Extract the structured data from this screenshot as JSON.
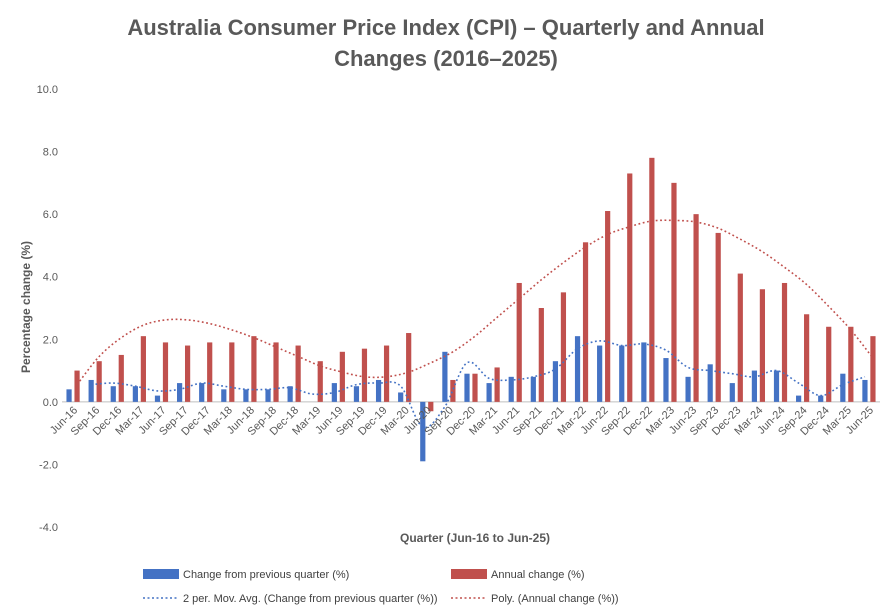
{
  "chart_data": {
    "type": "bar",
    "title_lines": [
      "Australia Consumer Price Index (CPI) – Quarterly and Annual",
      "Changes (2016–2025)"
    ],
    "xlabel": "Quarter (Jun-16 to Jun-25)",
    "ylabel": "Percentage change (%)",
    "ylim": [
      -4,
      10
    ],
    "yticks": [
      -4,
      -2,
      0,
      2,
      4,
      6,
      8,
      10
    ],
    "ytick_labels": [
      "-4.0",
      "-2.0",
      "0.0",
      "2.0",
      "4.0",
      "6.0",
      "8.0",
      "10.0"
    ],
    "categories": [
      "Jun-16",
      "Sep-16",
      "Dec-16",
      "Mar-17",
      "Jun-17",
      "Sep-17",
      "Dec-17",
      "Mar-18",
      "Jun-18",
      "Sep-18",
      "Dec-18",
      "Mar-19",
      "Jun-19",
      "Sep-19",
      "Dec-19",
      "Mar-20",
      "Jun-20",
      "Sep-20",
      "Dec-20",
      "Mar-21",
      "Jun-21",
      "Sep-21",
      "Dec-21",
      "Mar-22",
      "Jun-22",
      "Sep-22",
      "Dec-22",
      "Mar-23",
      "Jun-23",
      "Sep-23",
      "Dec-23",
      "Mar-24",
      "Jun-24",
      "Sep-24",
      "Dec-24",
      "Mar-25",
      "Jun-25"
    ],
    "series": [
      {
        "name": "Change from previous quarter (%)",
        "color": "#4472c4",
        "values": [
          0.4,
          0.7,
          0.5,
          0.5,
          0.2,
          0.6,
          0.6,
          0.4,
          0.4,
          0.4,
          0.5,
          0.0,
          0.6,
          0.5,
          0.7,
          0.3,
          -1.9,
          1.6,
          0.9,
          0.6,
          0.8,
          0.8,
          1.3,
          2.1,
          1.8,
          1.8,
          1.9,
          1.4,
          0.8,
          1.2,
          0.6,
          1.0,
          1.0,
          0.2,
          0.2,
          0.9,
          0.7
        ]
      },
      {
        "name": "Annual change (%)",
        "color": "#c0504d",
        "values": [
          1.0,
          1.3,
          1.5,
          2.1,
          1.9,
          1.8,
          1.9,
          1.9,
          2.1,
          1.9,
          1.8,
          1.3,
          1.6,
          1.7,
          1.8,
          2.2,
          -0.3,
          0.7,
          0.9,
          1.1,
          3.8,
          3.0,
          3.5,
          5.1,
          6.1,
          7.3,
          7.8,
          7.0,
          6.0,
          5.4,
          4.1,
          3.6,
          3.8,
          2.8,
          2.4,
          2.4,
          2.1
        ]
      }
    ],
    "trendlines": [
      {
        "name": "2 per. Mov. Avg. (Change from previous quarter (%))",
        "color": "#4472c4",
        "type": "moving_average",
        "period": 2,
        "of_series": 0
      },
      {
        "name": "Poly. (Annual change (%))",
        "color": "#c0504d",
        "type": "polynomial",
        "of_series": 1,
        "points": [
          0.55,
          1.45,
          2.05,
          2.45,
          2.62,
          2.62,
          2.5,
          2.3,
          2.05,
          1.75,
          1.45,
          1.15,
          0.95,
          0.8,
          0.8,
          0.95,
          1.25,
          1.6,
          2.1,
          2.7,
          3.3,
          3.9,
          4.45,
          4.95,
          5.35,
          5.6,
          5.78,
          5.8,
          5.75,
          5.55,
          5.2,
          4.8,
          4.3,
          3.75,
          3.05,
          2.3,
          1.4
        ]
      }
    ],
    "legend_position": "bottom",
    "grid": false
  }
}
